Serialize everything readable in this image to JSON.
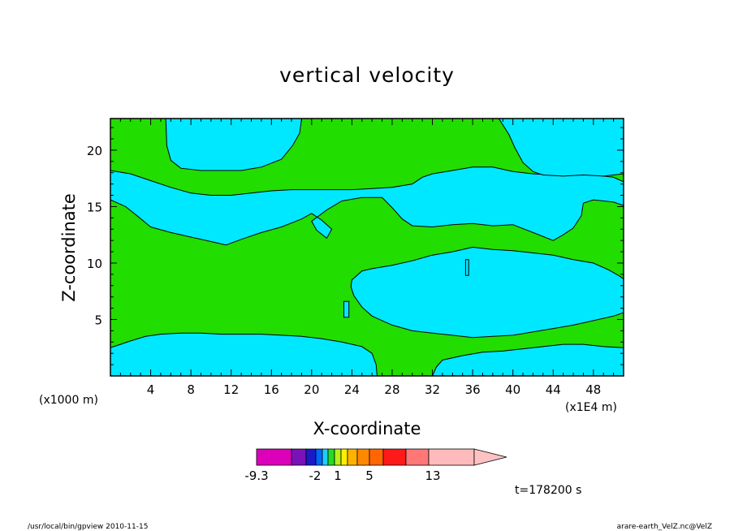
{
  "chart_data": {
    "type": "heatmap",
    "title": "vertical velocity",
    "xlabel": "X-coordinate",
    "ylabel": "Z-coordinate",
    "x_ticks": [
      "4",
      "8",
      "12",
      "16",
      "20",
      "24",
      "28",
      "32",
      "36",
      "40",
      "44",
      "48"
    ],
    "y_ticks": [
      "5",
      "10",
      "15",
      "20"
    ],
    "x_range": [
      0,
      51
    ],
    "y_range": [
      0,
      22.8
    ],
    "x_scale_note": "(x1E4 m)",
    "y_scale_note": "(x1000 m)",
    "time_label": "t=178200 s",
    "colorbar": {
      "colors": [
        "#dd00bb",
        "#7a12b8",
        "#1a1ac8",
        "#0066ff",
        "#1ecbff",
        "#22dd22",
        "#b8f018",
        "#ffee00",
        "#ffb300",
        "#ff8800",
        "#ff6600",
        "#ff1a1a",
        "#ff7777",
        "#ffbbbb",
        "#ffc2c2"
      ],
      "tick_labels": [
        "-9.3",
        "-2",
        "1",
        "5",
        "13"
      ],
      "extend": "right"
    },
    "fill_colors": {
      "cyan": "#00e8ff",
      "green": "#22dd00"
    },
    "contours": [
      {
        "name": "upper-cyan-band",
        "color": "cyan",
        "points": [
          [
            0,
            18.2
          ],
          [
            2,
            17.9
          ],
          [
            4,
            17.3
          ],
          [
            6,
            16.7
          ],
          [
            8,
            16.2
          ],
          [
            10,
            16
          ],
          [
            12,
            16
          ],
          [
            14,
            16.2
          ],
          [
            16,
            16.4
          ],
          [
            18,
            16.5
          ],
          [
            20,
            16.5
          ],
          [
            22,
            16.5
          ],
          [
            24,
            16.5
          ],
          [
            26,
            16.6
          ],
          [
            28,
            16.7
          ],
          [
            30,
            17
          ],
          [
            31,
            17.6
          ],
          [
            32,
            17.9
          ],
          [
            34,
            18.2
          ],
          [
            36,
            18.5
          ],
          [
            38,
            18.5
          ],
          [
            40,
            18.1
          ],
          [
            42,
            17.9
          ],
          [
            44,
            17.8
          ],
          [
            46,
            17.9
          ],
          [
            48,
            17.8
          ],
          [
            50,
            17.6
          ],
          [
            51,
            17.2
          ],
          [
            51,
            15.1
          ],
          [
            50,
            15.4
          ],
          [
            48,
            15.6
          ],
          [
            47,
            15.3
          ],
          [
            46.8,
            14.2
          ],
          [
            46,
            13.1
          ],
          [
            45,
            12.5
          ],
          [
            44,
            12
          ],
          [
            42,
            12.7
          ],
          [
            40,
            13.4
          ],
          [
            38,
            13.3
          ],
          [
            36,
            13.5
          ],
          [
            34,
            13.4
          ],
          [
            32,
            13.2
          ],
          [
            30,
            13.3
          ],
          [
            29,
            13.9
          ],
          [
            28,
            14.9
          ],
          [
            27,
            15.8
          ],
          [
            25,
            15.8
          ],
          [
            23,
            15.5
          ],
          [
            21.5,
            14.7
          ],
          [
            20,
            13.7
          ],
          [
            20.5,
            12.9
          ],
          [
            21.5,
            12.2
          ],
          [
            22,
            13
          ],
          [
            21,
            13.8
          ],
          [
            20,
            14.4
          ],
          [
            19,
            13.9
          ],
          [
            17,
            13.2
          ],
          [
            15,
            12.7
          ],
          [
            13,
            12.1
          ],
          [
            11.5,
            11.6
          ],
          [
            10,
            11.9
          ],
          [
            8,
            12.3
          ],
          [
            6,
            12.7
          ],
          [
            4,
            13.2
          ],
          [
            2.5,
            14.3
          ],
          [
            1.5,
            15
          ],
          [
            0,
            15.6
          ]
        ]
      },
      {
        "name": "top-cyan-dome",
        "color": "cyan",
        "points": [
          [
            5.5,
            22.8
          ],
          [
            19,
            22.8
          ],
          [
            18.8,
            21.5
          ],
          [
            18.1,
            20.4
          ],
          [
            17,
            19.2
          ],
          [
            15,
            18.5
          ],
          [
            13,
            18.2
          ],
          [
            11,
            18.2
          ],
          [
            9,
            18.2
          ],
          [
            7,
            18.4
          ],
          [
            6,
            19.1
          ],
          [
            5.6,
            20.4
          ]
        ]
      },
      {
        "name": "top-right-cyan",
        "color": "cyan",
        "points": [
          [
            38.6,
            22.8
          ],
          [
            51,
            22.8
          ],
          [
            51,
            17.9
          ],
          [
            49,
            17.7
          ],
          [
            47,
            17.8
          ],
          [
            45,
            17.7
          ],
          [
            43,
            17.8
          ],
          [
            42,
            18.1
          ],
          [
            41,
            18.9
          ],
          [
            40.2,
            20.2
          ],
          [
            39.6,
            21.4
          ]
        ]
      },
      {
        "name": "central-cyan-lens",
        "color": "cyan",
        "points": [
          [
            24,
            8.5
          ],
          [
            25,
            9.3
          ],
          [
            26,
            9.5
          ],
          [
            28,
            9.8
          ],
          [
            30,
            10.2
          ],
          [
            32,
            10.7
          ],
          [
            34,
            11
          ],
          [
            36,
            11.4
          ],
          [
            38,
            11.2
          ],
          [
            40,
            11.1
          ],
          [
            42,
            10.9
          ],
          [
            44,
            10.7
          ],
          [
            46,
            10.3
          ],
          [
            48,
            10
          ],
          [
            49.5,
            9.4
          ],
          [
            50.5,
            8.9
          ],
          [
            51,
            8.6
          ],
          [
            51,
            5.6
          ],
          [
            50,
            5.3
          ],
          [
            48,
            4.9
          ],
          [
            46,
            4.5
          ],
          [
            44,
            4.2
          ],
          [
            42,
            3.9
          ],
          [
            40,
            3.6
          ],
          [
            38,
            3.5
          ],
          [
            36,
            3.4
          ],
          [
            34,
            3.6
          ],
          [
            32,
            3.8
          ],
          [
            30,
            4
          ],
          [
            28,
            4.5
          ],
          [
            26,
            5.3
          ],
          [
            25,
            6.1
          ],
          [
            24.2,
            7.1
          ],
          [
            23.9,
            7.9
          ]
        ]
      },
      {
        "name": "bottom-left-cyan",
        "color": "cyan",
        "points": [
          [
            0,
            0
          ],
          [
            26.5,
            0
          ],
          [
            26.4,
            1
          ],
          [
            26,
            2
          ],
          [
            25,
            2.6
          ],
          [
            23,
            3
          ],
          [
            21,
            3.3
          ],
          [
            19,
            3.5
          ],
          [
            17,
            3.6
          ],
          [
            15,
            3.7
          ],
          [
            13,
            3.7
          ],
          [
            11,
            3.7
          ],
          [
            9,
            3.8
          ],
          [
            7,
            3.8
          ],
          [
            5,
            3.7
          ],
          [
            3.5,
            3.5
          ],
          [
            2,
            3.1
          ],
          [
            1,
            2.8
          ],
          [
            0,
            2.5
          ]
        ]
      },
      {
        "name": "bottom-right-cyan",
        "color": "cyan",
        "points": [
          [
            32,
            0
          ],
          [
            51,
            0
          ],
          [
            51,
            2.5
          ],
          [
            49,
            2.6
          ],
          [
            47,
            2.8
          ],
          [
            45,
            2.8
          ],
          [
            43,
            2.6
          ],
          [
            41,
            2.4
          ],
          [
            39,
            2.2
          ],
          [
            37,
            2.1
          ],
          [
            35,
            1.8
          ],
          [
            33,
            1.4
          ],
          [
            32.4,
            0.8
          ]
        ]
      },
      {
        "name": "cyan-sliver-1",
        "color": "cyan",
        "points": [
          [
            23.2,
            6.6
          ],
          [
            23.7,
            6.6
          ],
          [
            23.7,
            5.2
          ],
          [
            23.2,
            5.2
          ]
        ]
      },
      {
        "name": "cyan-sliver-2",
        "color": "cyan",
        "points": [
          [
            35.3,
            10.3
          ],
          [
            35.6,
            10.3
          ],
          [
            35.6,
            8.9
          ],
          [
            35.3,
            8.9
          ]
        ]
      }
    ]
  },
  "footer": {
    "left": "/usr/local/bin/gpview   2010-11-15",
    "right": "arare-earth_VelZ.nc@VelZ"
  }
}
